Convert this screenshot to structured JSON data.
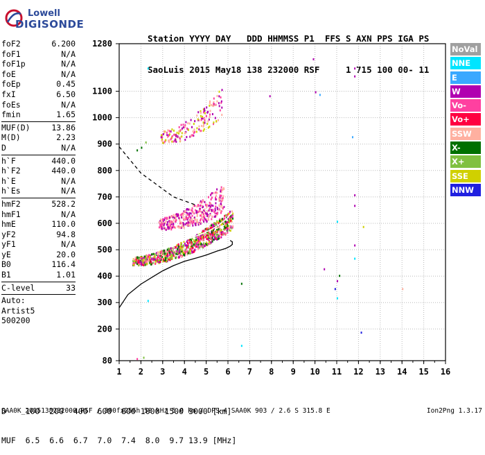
{
  "logo": {
    "line1": "Lowell",
    "line2": "DIGISONDE"
  },
  "header": {
    "row1": "Station YYYY DAY   DDD HHMMSS P1  FFS S AXN PPS IGA PS",
    "row2": "SaoLuis 2015 May18 138 232000 RSF     1 715 100 00- 11"
  },
  "params": [
    {
      "group": 1,
      "name": "foF2",
      "value": "6.200"
    },
    {
      "group": 1,
      "name": "foF1",
      "value": "N/A"
    },
    {
      "group": 1,
      "name": "foF1p",
      "value": "N/A"
    },
    {
      "group": 1,
      "name": "foE",
      "value": "N/A"
    },
    {
      "group": 1,
      "name": "foEp",
      "value": "0.45"
    },
    {
      "group": 1,
      "name": "fxI",
      "value": "6.50"
    },
    {
      "group": 1,
      "name": "foEs",
      "value": "N/A"
    },
    {
      "group": 1,
      "name": "fmin",
      "value": "1.65"
    },
    {
      "group": 2,
      "name": "MUF(D)",
      "value": "13.86"
    },
    {
      "group": 2,
      "name": "M(D)",
      "value": "2.23"
    },
    {
      "group": 2,
      "name": "D",
      "value": "N/A"
    },
    {
      "group": 3,
      "name": "h`F",
      "value": "440.0"
    },
    {
      "group": 3,
      "name": "h`F2",
      "value": "440.0"
    },
    {
      "group": 3,
      "name": "h`E",
      "value": "N/A"
    },
    {
      "group": 3,
      "name": "h`Es",
      "value": "N/A"
    },
    {
      "group": 4,
      "name": "hmF2",
      "value": "528.2"
    },
    {
      "group": 4,
      "name": "hmF1",
      "value": "N/A"
    },
    {
      "group": 4,
      "name": "hmE",
      "value": "110.0"
    },
    {
      "group": 4,
      "name": "yF2",
      "value": "94.8"
    },
    {
      "group": 4,
      "name": "yF1",
      "value": "N/A"
    },
    {
      "group": 4,
      "name": "yE",
      "value": "20.0"
    },
    {
      "group": 4,
      "name": "B0",
      "value": "116.4"
    },
    {
      "group": 4,
      "name": "B1",
      "value": "1.01"
    },
    {
      "group": 5,
      "name": "C-level",
      "value": "33"
    }
  ],
  "auto_lines": [
    "Auto:",
    "Artist5",
    "500200"
  ],
  "legend": [
    {
      "label": "NoVal",
      "color": "#a0a0a0"
    },
    {
      "label": "NNE",
      "color": "#00e5ff"
    },
    {
      "label": "E",
      "color": "#3aa8ff"
    },
    {
      "label": "W",
      "color": "#b000b0"
    },
    {
      "label": "Vo-",
      "color": "#ff40a0"
    },
    {
      "label": "Vo+",
      "color": "#ff0040"
    },
    {
      "label": "SSW",
      "color": "#ffb0a0"
    },
    {
      "label": "X-",
      "color": "#007000"
    },
    {
      "label": "X+",
      "color": "#80c040"
    },
    {
      "label": "SSE",
      "color": "#d0d000"
    },
    {
      "label": "NNW",
      "color": "#2020e0"
    }
  ],
  "dist_table": {
    "row1": "D    100  200  400  600  800 1000 1500 3000 [km]",
    "row2": "MUF  6.5  6.6  6.7  7.0  7.4  8.0  9.7 13.9 [MHz]"
  },
  "footer": {
    "left": "SAA0K_2015138232000.RSF / 300fx256h 50 kHz 5.0 km / DPS-4 SAA0K 903 / 2.6 S 315.8 E",
    "right": "Ion2Png 1.3.17"
  },
  "chart_data": {
    "type": "scatter",
    "title": "",
    "xlabel": "",
    "ylabel": "",
    "xlim": [
      1,
      16
    ],
    "ylim": [
      80,
      1280
    ],
    "x_ticks": [
      1,
      2,
      3,
      4,
      5,
      6,
      7,
      8,
      9,
      10,
      11,
      12,
      13,
      14,
      15,
      16
    ],
    "y_ticks": [
      80,
      200,
      300,
      400,
      500,
      600,
      700,
      800,
      900,
      1000,
      1100,
      1280
    ],
    "grid": true,
    "curves": [
      {
        "name": "profile",
        "style": "solid",
        "points": [
          [
            1.0,
            280
          ],
          [
            1.4,
            330
          ],
          [
            2.0,
            370
          ],
          [
            2.6,
            400
          ],
          [
            3.0,
            420
          ],
          [
            3.5,
            440
          ],
          [
            4.0,
            456
          ],
          [
            4.6,
            470
          ],
          [
            5.0,
            480
          ],
          [
            5.5,
            495
          ],
          [
            5.9,
            505
          ],
          [
            6.1,
            513
          ],
          [
            6.2,
            520
          ],
          [
            6.2,
            530
          ],
          [
            6.1,
            535
          ]
        ]
      },
      {
        "name": "muf-trace",
        "style": "dashed",
        "points": [
          [
            1.0,
            890
          ],
          [
            1.5,
            840
          ],
          [
            2.0,
            790
          ],
          [
            2.5,
            760
          ],
          [
            3.0,
            730
          ],
          [
            3.5,
            700
          ],
          [
            4.0,
            685
          ],
          [
            4.5,
            670
          ]
        ]
      },
      {
        "name": "trace-fit",
        "style": "solid-white",
        "points": [
          [
            1.7,
            475
          ],
          [
            2.2,
            485
          ],
          [
            2.8,
            500
          ],
          [
            3.3,
            515
          ],
          [
            3.8,
            530
          ],
          [
            4.3,
            545
          ],
          [
            4.8,
            560
          ],
          [
            5.2,
            575
          ],
          [
            5.6,
            595
          ],
          [
            5.9,
            615
          ],
          [
            6.2,
            640
          ]
        ]
      }
    ],
    "echo_regions": [
      {
        "x_range": [
          1.6,
          6.2
        ],
        "y_base": [
          460,
          620
        ],
        "spread": 50,
        "colors": [
          "#007000",
          "#80c040",
          "#d0d000",
          "#ff40a0",
          "#b000b0",
          "#ffb0a0",
          "#ff0040"
        ],
        "count": 900
      },
      {
        "x_range": [
          2.8,
          5.8
        ],
        "y_base": [
          600,
          700
        ],
        "spread": 70,
        "colors": [
          "#b000b0",
          "#ff40a0",
          "#ffb0a0"
        ],
        "count": 380
      },
      {
        "x_range": [
          2.9,
          5.7
        ],
        "y_base": [
          930,
          1060
        ],
        "spread": 70,
        "colors": [
          "#ffb0a0",
          "#d0d000",
          "#ff40a0",
          "#b000b0"
        ],
        "count": 180
      }
    ],
    "isolated_points": [
      [
        2.3,
        1190,
        "#00e5ff"
      ],
      [
        7.9,
        1085,
        "#b000b0"
      ],
      [
        9.9,
        1225,
        "#b000b0"
      ],
      [
        10.0,
        1100,
        "#b000b0"
      ],
      [
        10.2,
        1090,
        "#3aa8ff"
      ],
      [
        11.8,
        1190,
        "#b000b0"
      ],
      [
        11.8,
        1160,
        "#b000b0"
      ],
      [
        11.7,
        930,
        "#3aa8ff"
      ],
      [
        11.8,
        710,
        "#b000b0"
      ],
      [
        11.8,
        670,
        "#b000b0"
      ],
      [
        11.0,
        610,
        "#00e5ff"
      ],
      [
        12.2,
        590,
        "#d0d000"
      ],
      [
        11.8,
        520,
        "#b000b0"
      ],
      [
        11.8,
        470,
        "#00e5ff"
      ],
      [
        10.4,
        430,
        "#b000b0"
      ],
      [
        11.1,
        405,
        "#007000"
      ],
      [
        11.0,
        385,
        "#b000b0"
      ],
      [
        10.9,
        355,
        "#2020e0"
      ],
      [
        11.0,
        320,
        "#00e5ff"
      ],
      [
        12.1,
        190,
        "#2020e0"
      ],
      [
        6.6,
        375,
        "#007000"
      ],
      [
        2.3,
        310,
        "#00e5ff"
      ],
      [
        6.6,
        140,
        "#00e5ff"
      ],
      [
        1.8,
        90,
        "#ff40a0"
      ],
      [
        2.1,
        95,
        "#80c040"
      ],
      [
        14.0,
        355,
        "#ffb0a0"
      ],
      [
        1.8,
        880,
        "#007000"
      ],
      [
        2.0,
        890,
        "#007000"
      ],
      [
        2.2,
        910,
        "#80c040"
      ]
    ]
  }
}
